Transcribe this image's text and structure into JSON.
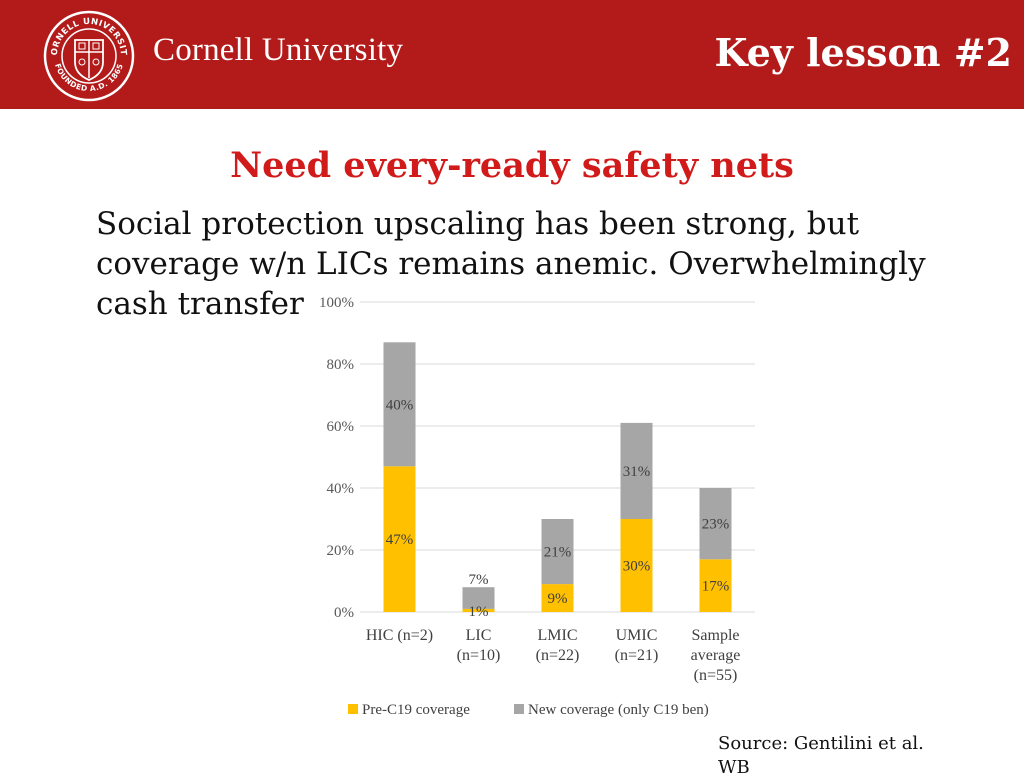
{
  "header": {
    "logo_text": "Cornell University",
    "seal_top_text": "CORNELL UNIVERSITY",
    "seal_bottom_text": "FOUNDED A.D. 1865",
    "lesson_title": "Key lesson #2"
  },
  "slide": {
    "subtitle": "Need every-ready safety nets",
    "body": "Social protection upscaling has been strong, but coverage w/n LICs remains anemic. Overwhelmingly cash transfer",
    "source": "Source: Gentilini et al. WB"
  },
  "colors": {
    "header_bg": "#b31b1b",
    "subtitle": "#d11a1a",
    "pre": "#ffc000",
    "new": "#a6a6a6"
  },
  "chart_data": {
    "type": "bar",
    "stacked": true,
    "categories": [
      [
        "HIC (n=2)"
      ],
      [
        "LIC",
        "(n=10)"
      ],
      [
        "LMIC",
        "(n=22)"
      ],
      [
        "UMIC",
        "(n=21)"
      ],
      [
        "Sample",
        "average",
        "(n=55)"
      ]
    ],
    "series": [
      {
        "name": "Pre-C19 coverage",
        "values": [
          47,
          1,
          9,
          30,
          17
        ],
        "labels": [
          "47%",
          "1%",
          "9%",
          "30%",
          "17%"
        ],
        "color": "#ffc000"
      },
      {
        "name": "New coverage (only C19 ben)",
        "values": [
          40,
          7,
          21,
          31,
          23
        ],
        "labels": [
          "40%",
          "7%",
          "21%",
          "31%",
          "23%"
        ],
        "color": "#a6a6a6"
      }
    ],
    "y_ticks": [
      "0%",
      "20%",
      "40%",
      "60%",
      "80%",
      "100%"
    ],
    "ylim": [
      0,
      100
    ],
    "grid": true,
    "legend": "bottom"
  }
}
